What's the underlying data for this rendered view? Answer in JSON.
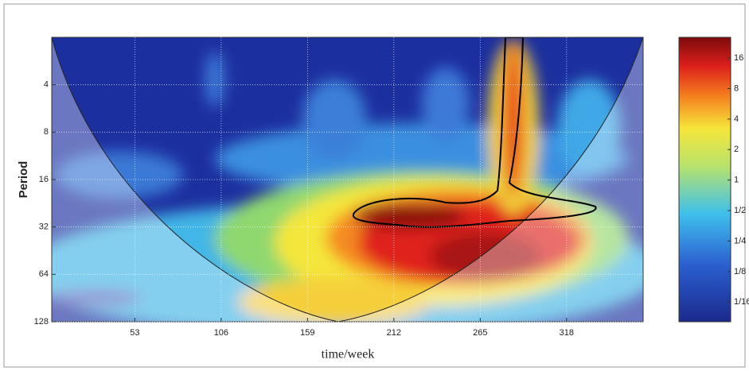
{
  "chart_data": {
    "type": "heatmap",
    "xlabel": "time/week",
    "ylabel": "Period",
    "xlim": [
      2,
      365
    ],
    "xticks": [
      53,
      106,
      159,
      212,
      265,
      318
    ],
    "ylim": [
      2,
      128
    ],
    "yticks": [
      4,
      8,
      16,
      32,
      64,
      128
    ],
    "y_scale": "log2",
    "y_reversed": true,
    "grid": true,
    "colorbar": {
      "clim": [
        0.04,
        25.6
      ],
      "scale": "log2",
      "ticks": [
        {
          "value": 16,
          "label": "16"
        },
        {
          "value": 8,
          "label": "8"
        },
        {
          "value": 4,
          "label": "4"
        },
        {
          "value": 2,
          "label": "2"
        },
        {
          "value": 1,
          "label": "1"
        },
        {
          "value": 0.5,
          "label": "1/2"
        },
        {
          "value": 0.25,
          "label": "1/4"
        },
        {
          "value": 0.125,
          "label": "1/8"
        },
        {
          "value": 0.0625,
          "label": "1/16"
        }
      ]
    }
  }
}
